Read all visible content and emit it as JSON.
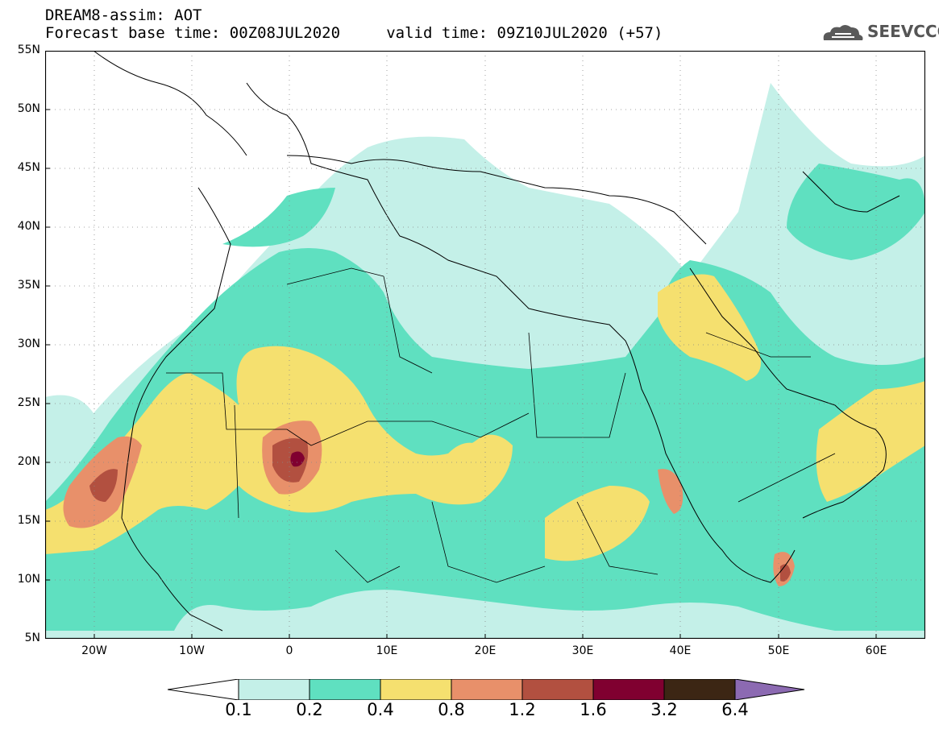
{
  "header": {
    "title": "DREAM8-assim: AOT",
    "subtitle": "Forecast base time: 00Z08JUL2020     valid time: 09Z10JUL2020 (+57)"
  },
  "logo": {
    "text": "SEEVCCC",
    "icon": "cloud-logo-icon"
  },
  "map": {
    "variable": "AOT",
    "lon_range": [
      -25,
      65
    ],
    "lat_range": [
      5,
      55
    ],
    "lat_ticks": [
      "55N",
      "50N",
      "45N",
      "40N",
      "35N",
      "30N",
      "25N",
      "20N",
      "15N",
      "10N",
      "5N"
    ],
    "lon_ticks": [
      "20W",
      "10W",
      "0",
      "10E",
      "20E",
      "30E",
      "40E",
      "50E",
      "60E"
    ],
    "grid": true,
    "gridline_style": "dotted"
  },
  "colorbar": {
    "labels": [
      "0.1",
      "0.2",
      "0.4",
      "0.8",
      "1.2",
      "1.6",
      "3.2",
      "6.4"
    ],
    "colors": [
      "#ffffff",
      "#c4f0e8",
      "#5fe0c0",
      "#f5e06f",
      "#e8906a",
      "#b25040",
      "#800030",
      "#3c2614",
      "#8c6ab2"
    ]
  }
}
